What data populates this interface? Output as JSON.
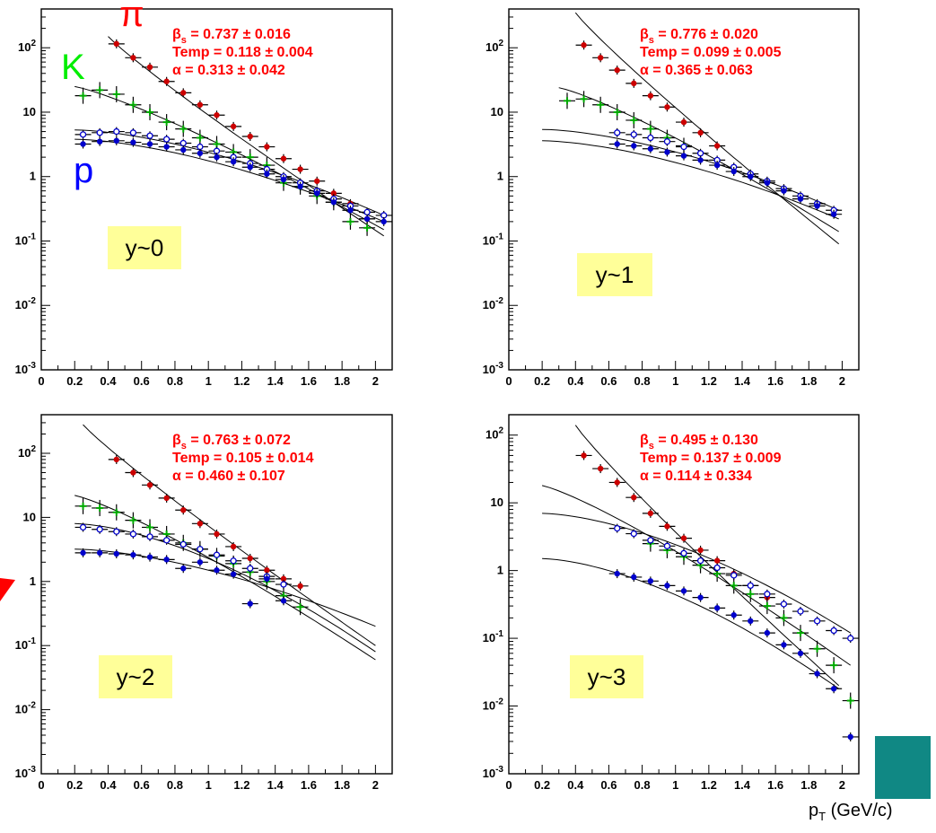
{
  "legend": {
    "pi": {
      "label": "π",
      "color": "#ff0000"
    },
    "K": {
      "label": "K",
      "color": "#00ee00"
    },
    "p": {
      "label": "p",
      "color": "#0000ff"
    }
  },
  "xaxis_title": {
    "base": "p",
    "sub": "T",
    "rest": " (GeV/c)"
  },
  "colors": {
    "pion": "#cc0000",
    "kaon": "#00aa00",
    "proton_open": "#0000cc",
    "proton_filled": "#0000cc",
    "fit_text": "#ff0000",
    "rapidity_box": "#ffff99",
    "teal_box": "#108884"
  },
  "chart_data": [
    {
      "type": "scatter",
      "rapidity_label": "y~0",
      "fit": {
        "beta": "β",
        "beta_sub": "s",
        "beta_val": " = 0.737 ± 0.016",
        "temp": "Temp = 0.118 ± 0.004",
        "alpha": "α = 0.313 ± 0.042"
      },
      "yscale": "log",
      "ylim": [
        0.001,
        400
      ],
      "xlim": [
        0,
        2.1
      ],
      "xticks": [
        "0",
        "0.2",
        "0.4",
        "0.6",
        "0.8",
        "1",
        "1.2",
        "1.4",
        "1.6",
        "1.8",
        "2"
      ],
      "yticks": [
        "10-3",
        "10-2",
        "10-1",
        "1",
        "10",
        "102"
      ],
      "series": [
        {
          "key": "pion",
          "x": [
            0.45,
            0.55,
            0.65,
            0.75,
            0.85,
            0.95,
            1.05,
            1.15,
            1.25,
            1.35,
            1.45,
            1.55,
            1.65,
            1.75,
            1.85,
            1.95
          ],
          "y": [
            115,
            70,
            50,
            30,
            20,
            13,
            9,
            6,
            4.2,
            2.9,
            1.9,
            1.3,
            0.85,
            0.55,
            0.38,
            0.22
          ]
        },
        {
          "key": "kaon",
          "x": [
            0.25,
            0.35,
            0.45,
            0.55,
            0.65,
            0.75,
            0.85,
            0.95,
            1.05,
            1.15,
            1.25,
            1.35,
            1.45,
            1.55,
            1.65,
            1.75,
            1.85,
            1.95
          ],
          "y": [
            18,
            22,
            19,
            13,
            10,
            7,
            5.5,
            4,
            3.2,
            2.4,
            2,
            1.5,
            0.8,
            0.7,
            0.5,
            0.4,
            0.2,
            0.16
          ]
        },
        {
          "key": "proton_open",
          "x": [
            0.25,
            0.35,
            0.45,
            0.55,
            0.65,
            0.75,
            0.85,
            0.95,
            1.05,
            1.15,
            1.25,
            1.35,
            1.45,
            1.55,
            1.65,
            1.75,
            1.85,
            1.95,
            2.05
          ],
          "y": [
            4.5,
            4.8,
            5,
            4.8,
            4.3,
            3.8,
            3.3,
            2.9,
            2.5,
            2,
            1.6,
            1.3,
            1,
            0.8,
            0.6,
            0.45,
            0.35,
            0.28,
            0.25
          ]
        },
        {
          "key": "proton_filled",
          "x": [
            0.25,
            0.35,
            0.45,
            0.55,
            0.65,
            0.75,
            0.85,
            0.95,
            1.05,
            1.15,
            1.25,
            1.35,
            1.45,
            1.55,
            1.65,
            1.75,
            1.85,
            1.95,
            2.05
          ],
          "y": [
            3.2,
            3.5,
            3.6,
            3.4,
            3.2,
            2.9,
            2.6,
            2.3,
            2,
            1.7,
            1.4,
            1.1,
            0.9,
            0.7,
            0.55,
            0.4,
            0.3,
            0.22,
            0.2
          ]
        }
      ],
      "curves": [
        {
          "x0": 0.4,
          "y0": 150,
          "x1": 2.05,
          "y1": 0.12,
          "shape": "pion"
        },
        {
          "x0": 0.2,
          "y0": 25,
          "x1": 2.05,
          "y1": 0.15,
          "shape": "kaon"
        },
        {
          "x0": 0.2,
          "y0": 5.3,
          "x1": 2.05,
          "y1": 0.25,
          "shape": "proton"
        },
        {
          "x0": 0.2,
          "y0": 3.8,
          "x1": 2.05,
          "y1": 0.2,
          "shape": "proton"
        }
      ]
    },
    {
      "type": "scatter",
      "rapidity_label": "y~1",
      "fit": {
        "beta": "β",
        "beta_sub": "s",
        "beta_val": " = 0.776 ± 0.020",
        "temp": "Temp = 0.099 ± 0.005",
        "alpha": "α = 0.365 ± 0.063"
      },
      "yscale": "log",
      "ylim": [
        0.001,
        400
      ],
      "xlim": [
        0,
        2.1
      ],
      "xticks": [
        "0",
        "0.2",
        "0.4",
        "0.6",
        "0.8",
        "1",
        "1.2",
        "1.4",
        "1.6",
        "1.8",
        "2"
      ],
      "yticks": [
        "10-3",
        "10-2",
        "10-1",
        "1",
        "10",
        "102"
      ],
      "series": [
        {
          "key": "pion",
          "x": [
            0.45,
            0.55,
            0.65,
            0.75,
            0.85,
            0.95,
            1.05,
            1.15,
            1.25
          ],
          "y": [
            110,
            70,
            45,
            28,
            18,
            12,
            7,
            4.8,
            3
          ]
        },
        {
          "key": "kaon",
          "x": [
            0.35,
            0.45,
            0.55,
            0.65,
            0.75,
            0.85,
            0.95,
            1.05
          ],
          "y": [
            15,
            16,
            13,
            10,
            7.5,
            5.5,
            4,
            3
          ]
        },
        {
          "key": "proton_open",
          "x": [
            0.65,
            0.75,
            0.85,
            0.95,
            1.05,
            1.15,
            1.25,
            1.35,
            1.45,
            1.55,
            1.65,
            1.75,
            1.85,
            1.95
          ],
          "y": [
            4.8,
            4.5,
            4,
            3.5,
            2.9,
            2.3,
            1.8,
            1.4,
            1.1,
            0.85,
            0.65,
            0.5,
            0.38,
            0.3
          ]
        },
        {
          "key": "proton_filled",
          "x": [
            0.65,
            0.75,
            0.85,
            0.95,
            1.05,
            1.15,
            1.25,
            1.35,
            1.45,
            1.55,
            1.65,
            1.75,
            1.85,
            1.95
          ],
          "y": [
            3.2,
            3,
            2.7,
            2.4,
            2.1,
            1.8,
            1.5,
            1.2,
            1,
            0.8,
            0.6,
            0.45,
            0.35,
            0.26
          ]
        }
      ],
      "curves": [
        {
          "x0": 0.4,
          "y0": 350,
          "x1": 1.98,
          "y1": 0.09,
          "shape": "pion"
        },
        {
          "x0": 0.3,
          "y0": 24,
          "x1": 1.98,
          "y1": 0.14,
          "shape": "kaon"
        },
        {
          "x0": 0.2,
          "y0": 5.4,
          "x1": 1.98,
          "y1": 0.3,
          "shape": "proton"
        },
        {
          "x0": 0.2,
          "y0": 3.6,
          "x1": 1.98,
          "y1": 0.22,
          "shape": "proton"
        }
      ]
    },
    {
      "type": "scatter",
      "rapidity_label": "y~2",
      "fit": {
        "beta": "β",
        "beta_sub": "s",
        "beta_val": " = 0.763 ± 0.072",
        "temp": "Temp = 0.105 ± 0.014",
        "alpha": "α = 0.460 ± 0.107"
      },
      "yscale": "log",
      "ylim": [
        0.001,
        400
      ],
      "xlim": [
        0,
        2.1
      ],
      "xticks": [
        "0",
        "0.2",
        "0.4",
        "0.6",
        "0.8",
        "1",
        "1.2",
        "1.4",
        "1.6",
        "1.8",
        "2"
      ],
      "yticks": [
        "10-3",
        "10-2",
        "10-1",
        "1",
        "10",
        "102"
      ],
      "series": [
        {
          "key": "pion",
          "x": [
            0.45,
            0.55,
            0.65,
            0.75,
            0.85,
            0.95,
            1.05,
            1.15,
            1.25,
            1.35,
            1.45,
            1.55
          ],
          "y": [
            80,
            50,
            32,
            20,
            13,
            8,
            5.5,
            3.5,
            2.3,
            1.5,
            1.1,
            0.85
          ]
        },
        {
          "key": "kaon",
          "x": [
            0.25,
            0.35,
            0.45,
            0.55,
            0.65,
            0.75,
            0.85,
            0.95,
            1.05,
            1.15,
            1.25,
            1.35,
            1.45,
            1.55
          ],
          "y": [
            15,
            14,
            12,
            9,
            7,
            5.5,
            4,
            3.2,
            2.5,
            1.9,
            1.4,
            1,
            0.6,
            0.4
          ]
        },
        {
          "key": "proton_open",
          "x": [
            0.25,
            0.35,
            0.45,
            0.55,
            0.65,
            0.75,
            0.85,
            0.95,
            1.05,
            1.15,
            1.25,
            1.35,
            1.45
          ],
          "y": [
            7,
            6.5,
            6,
            5.5,
            5,
            4.4,
            3.8,
            3.2,
            2.6,
            2.1,
            1.6,
            1.2,
            0.9
          ]
        },
        {
          "key": "proton_filled",
          "x": [
            0.25,
            0.35,
            0.45,
            0.55,
            0.65,
            0.75,
            0.85,
            0.95,
            1.05,
            1.15,
            1.25,
            1.35,
            1.45
          ],
          "y": [
            2.8,
            2.8,
            2.7,
            2.6,
            2.4,
            2.2,
            1.6,
            2,
            1.5,
            1.3,
            0.45,
            1.1,
            0.5
          ]
        }
      ],
      "curves": [
        {
          "x0": 0.25,
          "y0": 280,
          "x1": 2,
          "y1": 0.1,
          "shape": "pion"
        },
        {
          "x0": 0.2,
          "y0": 22,
          "x1": 2,
          "y1": 0.06,
          "shape": "kaon"
        },
        {
          "x0": 0.2,
          "y0": 8,
          "x1": 2,
          "y1": 0.08,
          "shape": "proton"
        },
        {
          "x0": 0.2,
          "y0": 3.2,
          "x1": 2,
          "y1": 0.2,
          "shape": "proton"
        }
      ]
    },
    {
      "type": "scatter",
      "rapidity_label": "y~3",
      "fit": {
        "beta": "β",
        "beta_sub": "s",
        "beta_val": " = 0.495 ± 0.130",
        "temp": "Temp = 0.137 ± 0.009",
        "alpha": "α = 0.114 ± 0.334"
      },
      "yscale": "log",
      "ylim": [
        0.001,
        200
      ],
      "xlim": [
        0,
        2.1
      ],
      "xticks": [
        "0",
        "0.2",
        "0.4",
        "0.6",
        "0.8",
        "1",
        "1.2",
        "1.4",
        "1.6",
        "1.8",
        "2"
      ],
      "yticks": [
        "10-3",
        "10-2",
        "10-1",
        "1",
        "10",
        "102"
      ],
      "series": [
        {
          "key": "pion",
          "x": [
            0.45,
            0.55,
            0.65,
            0.75,
            0.85,
            0.95,
            1.05,
            1.15,
            1.25,
            1.35,
            1.45,
            1.55
          ],
          "y": [
            50,
            32,
            20,
            12,
            7,
            4.5,
            3,
            2,
            1.4,
            0.9,
            0.6,
            0.4
          ]
        },
        {
          "key": "kaon",
          "x": [
            0.85,
            0.95,
            1.05,
            1.15,
            1.25,
            1.35,
            1.45,
            1.55,
            1.65,
            1.75,
            1.85,
            1.95,
            2.05
          ],
          "y": [
            2.5,
            2,
            1.6,
            1.2,
            0.9,
            0.6,
            0.45,
            0.3,
            0.2,
            0.12,
            0.07,
            0.04,
            0.012
          ]
        },
        {
          "key": "proton_open",
          "x": [
            0.65,
            0.75,
            0.85,
            0.95,
            1.05,
            1.15,
            1.25,
            1.35,
            1.45,
            1.55,
            1.65,
            1.75,
            1.85,
            1.95,
            2.05
          ],
          "y": [
            4.2,
            3.5,
            2.8,
            2.3,
            1.8,
            1.4,
            1.1,
            0.85,
            0.6,
            0.45,
            0.32,
            0.25,
            0.18,
            0.13,
            0.1
          ]
        },
        {
          "key": "proton_filled",
          "x": [
            0.65,
            0.75,
            0.85,
            0.95,
            1.05,
            1.15,
            1.25,
            1.35,
            1.45,
            1.55,
            1.65,
            1.75,
            1.85,
            1.95,
            2.05
          ],
          "y": [
            0.9,
            0.8,
            0.7,
            0.6,
            0.5,
            0.4,
            0.28,
            0.22,
            0.18,
            0.12,
            0.08,
            0.06,
            0.03,
            0.018,
            0.0035
          ]
        }
      ],
      "curves": [
        {
          "x0": 0.4,
          "y0": 140,
          "x1": 1.98,
          "y1": 0.02,
          "shape": "pion"
        },
        {
          "x0": 0.2,
          "y0": 18,
          "x1": 2.05,
          "y1": 0.04,
          "shape": "kaon"
        },
        {
          "x0": 0.2,
          "y0": 7,
          "x1": 2.05,
          "y1": 0.12,
          "shape": "proton"
        },
        {
          "x0": 0.2,
          "y0": 1.5,
          "x1": 1.98,
          "y1": 0.018,
          "shape": "proton"
        }
      ]
    }
  ]
}
